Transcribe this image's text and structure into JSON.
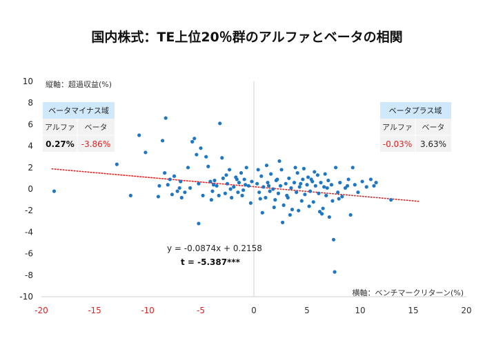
{
  "chart_data": {
    "type": "scatter",
    "title": "国内株式：TE上位20％群のアルファとベータの相関",
    "xlabel": "横軸：ベンチマークリターン(%)",
    "ylabel": "縦軸：超過収益(%)",
    "xlim": [
      -20,
      20
    ],
    "ylim": [
      -10,
      10
    ],
    "xticks": [
      -20,
      -15,
      -10,
      -5,
      0,
      5,
      10,
      15,
      20
    ],
    "yticks": [
      -10,
      -8,
      -6,
      -4,
      -2,
      0,
      2,
      4,
      6,
      8,
      10
    ],
    "regression": {
      "slope": -0.0874,
      "intercept": 0.2158,
      "equation": "y = -0.0874x + 0.2158",
      "t_label": "t = ",
      "t_value": "-5.387***",
      "x_range": [
        -19,
        15.5
      ]
    },
    "legend_neg": {
      "title": "ベータマイナス域",
      "col1": "アルファ",
      "col2": "ベータ",
      "val1": "0.27%",
      "val2": "-3.86%"
    },
    "legend_pos": {
      "title": "ベータプラス域",
      "col1": "アルファ",
      "col2": "ベータ",
      "val1": "-0.03%",
      "val2": "3.63%"
    },
    "colors": {
      "points": "#1f77c4",
      "trend": "#e02020",
      "negative_label": "#e02020",
      "header_fill": "#cfe8fb"
    },
    "points": [
      [
        -18.8,
        -0.2
      ],
      [
        -12.9,
        2.3
      ],
      [
        -11.6,
        -0.6
      ],
      [
        -10.8,
        5.0
      ],
      [
        -10.2,
        3.4
      ],
      [
        -8.9,
        0.3
      ],
      [
        -8.6,
        4.5
      ],
      [
        -8.3,
        6.6
      ],
      [
        -8.4,
        1.5
      ],
      [
        -8.1,
        0.4
      ],
      [
        -7.9,
        0.9
      ],
      [
        -7.7,
        -0.5
      ],
      [
        -7.5,
        1.2
      ],
      [
        -7.2,
        -0.2
      ],
      [
        -6.9,
        0.7
      ],
      [
        -6.5,
        -0.3
      ],
      [
        -6.2,
        2.0
      ],
      [
        -6.0,
        0.1
      ],
      [
        -5.8,
        4.4
      ],
      [
        -5.6,
        4.7
      ],
      [
        -5.4,
        3.2
      ],
      [
        -5.2,
        0.5
      ],
      [
        -5.0,
        3.8
      ],
      [
        -4.8,
        -0.6
      ],
      [
        -4.5,
        3.0
      ],
      [
        -4.3,
        2.1
      ],
      [
        -4.1,
        0.7
      ],
      [
        -3.9,
        -0.2
      ],
      [
        -3.7,
        0.8
      ],
      [
        -3.5,
        0.3
      ],
      [
        -3.2,
        6.1
      ],
      [
        -3.0,
        2.9
      ],
      [
        -2.9,
        1.0
      ],
      [
        -2.7,
        -0.4
      ],
      [
        -2.5,
        0.5
      ],
      [
        -2.3,
        1.8
      ],
      [
        -2.1,
        -0.8
      ],
      [
        -1.9,
        0.2
      ],
      [
        -1.7,
        1.1
      ],
      [
        -1.5,
        -0.3
      ],
      [
        -1.4,
        0.6
      ],
      [
        -1.2,
        1.5
      ],
      [
        -1.0,
        -0.1
      ],
      [
        -0.9,
        0.9
      ],
      [
        -0.7,
        2.0
      ],
      [
        -0.5,
        0.3
      ],
      [
        -0.3,
        -1.3
      ],
      [
        -0.2,
        0.7
      ],
      [
        -5.2,
        -3.2
      ],
      [
        -4.0,
        -1.0
      ],
      [
        -3.8,
        0.4
      ],
      [
        -3.3,
        -0.6
      ],
      [
        -2.2,
        0.0
      ],
      [
        -1.6,
        0.9
      ],
      [
        -1.1,
        -0.6
      ],
      [
        -0.8,
        0.4
      ],
      [
        -2.6,
        1.3
      ],
      [
        -6.8,
        -0.8
      ],
      [
        -7.0,
        0.1
      ],
      [
        -9.0,
        -0.7
      ],
      [
        0.3,
        0.5
      ],
      [
        0.5,
        -0.3
      ],
      [
        0.7,
        1.2
      ],
      [
        0.9,
        0.2
      ],
      [
        1.1,
        -0.8
      ],
      [
        1.3,
        0.6
      ],
      [
        1.5,
        -0.2
      ],
      [
        1.6,
        1.4
      ],
      [
        1.8,
        0.0
      ],
      [
        2.0,
        -1.0
      ],
      [
        2.1,
        0.8
      ],
      [
        2.3,
        -0.4
      ],
      [
        2.5,
        0.3
      ],
      [
        2.6,
        1.8
      ],
      [
        2.8,
        -1.5
      ],
      [
        3.0,
        0.5
      ],
      [
        3.1,
        -0.6
      ],
      [
        3.3,
        1.0
      ],
      [
        3.5,
        0.1
      ],
      [
        3.6,
        -1.9
      ],
      [
        3.8,
        0.6
      ],
      [
        4.0,
        -0.3
      ],
      [
        4.1,
        1.5
      ],
      [
        4.3,
        0.2
      ],
      [
        4.5,
        -1.1
      ],
      [
        4.6,
        0.9
      ],
      [
        4.8,
        -0.5
      ],
      [
        5.0,
        0.4
      ],
      [
        5.1,
        1.1
      ],
      [
        5.3,
        -0.2
      ],
      [
        5.5,
        0.7
      ],
      [
        5.6,
        -1.2
      ],
      [
        5.8,
        0.3
      ],
      [
        6.0,
        1.3
      ],
      [
        6.1,
        -0.4
      ],
      [
        6.3,
        0.6
      ],
      [
        6.5,
        -1.8
      ],
      [
        6.6,
        0.2
      ],
      [
        6.8,
        -0.6
      ],
      [
        7.0,
        0.8
      ],
      [
        7.1,
        -2.6
      ],
      [
        7.3,
        0.4
      ],
      [
        7.5,
        -4.7
      ],
      [
        7.6,
        -7.7
      ],
      [
        7.7,
        2.0
      ],
      [
        7.9,
        -0.3
      ],
      [
        8.1,
        0.6
      ],
      [
        8.3,
        -0.7
      ],
      [
        8.6,
        0.1
      ],
      [
        8.9,
        0.9
      ],
      [
        9.1,
        -2.4
      ],
      [
        9.3,
        2.0
      ],
      [
        9.5,
        0.4
      ],
      [
        9.8,
        -0.3
      ],
      [
        10.2,
        0.7
      ],
      [
        10.6,
        0.2
      ],
      [
        11.0,
        0.9
      ],
      [
        11.3,
        0.3
      ],
      [
        11.5,
        0.6
      ],
      [
        12.9,
        -1.0
      ],
      [
        0.8,
        -2.2
      ],
      [
        1.9,
        -1.7
      ],
      [
        2.7,
        -3.1
      ],
      [
        3.4,
        -2.4
      ],
      [
        4.2,
        -2.0
      ],
      [
        5.2,
        -1.6
      ],
      [
        6.2,
        -2.1
      ],
      [
        6.4,
        -2.3
      ],
      [
        7.4,
        -1.1
      ],
      [
        0.4,
        1.8
      ],
      [
        1.2,
        2.2
      ],
      [
        2.4,
        2.6
      ],
      [
        3.9,
        2.0
      ],
      [
        4.7,
        1.9
      ],
      [
        5.7,
        1.6
      ],
      [
        6.7,
        1.4
      ],
      [
        0.6,
        -0.9
      ],
      [
        1.4,
        0.3
      ],
      [
        2.2,
        0.9
      ],
      [
        3.2,
        -0.8
      ],
      [
        4.4,
        0.5
      ],
      [
        5.4,
        0.9
      ],
      [
        6.9,
        0.1
      ],
      [
        8.0,
        -0.9
      ],
      [
        8.8,
        0.3
      ]
    ]
  }
}
